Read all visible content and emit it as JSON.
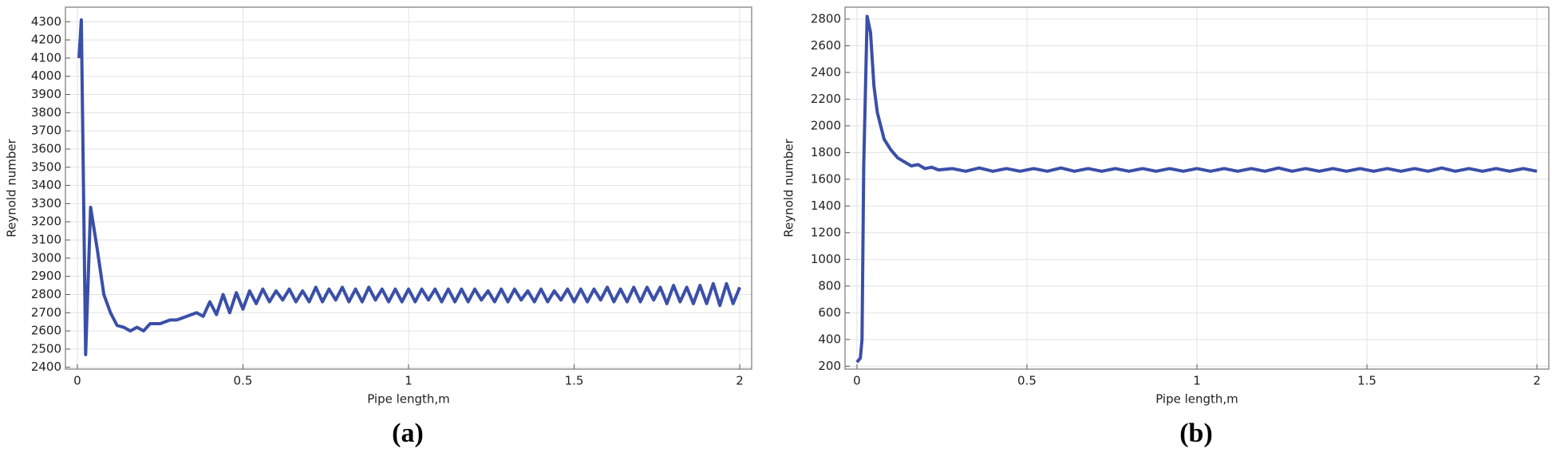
{
  "chart_data": [
    {
      "type": "line",
      "label": "(a)",
      "xlabel": "Pipe length,m",
      "ylabel": "Reynold number",
      "color": "#3a4fa8",
      "grid": true,
      "xlim": [
        -0.036,
        2.036
      ],
      "ylim": [
        2390,
        4380
      ],
      "xticks": [
        0,
        0.5,
        1,
        1.5,
        2
      ],
      "yticks": [
        2400,
        2500,
        2600,
        2700,
        2800,
        2900,
        3000,
        3100,
        3200,
        3300,
        3400,
        3500,
        3600,
        3700,
        3800,
        3900,
        4000,
        4100,
        4200,
        4300
      ],
      "x": [
        0.005,
        0.012,
        0.025,
        0.04,
        0.06,
        0.08,
        0.1,
        0.12,
        0.14,
        0.16,
        0.18,
        0.2,
        0.22,
        0.25,
        0.28,
        0.3,
        0.33,
        0.36,
        0.38,
        0.4,
        0.42,
        0.44,
        0.46,
        0.48,
        0.5,
        0.52,
        0.54,
        0.56,
        0.58,
        0.6,
        0.62,
        0.64,
        0.66,
        0.68,
        0.7,
        0.72,
        0.74,
        0.76,
        0.78,
        0.8,
        0.82,
        0.84,
        0.86,
        0.88,
        0.9,
        0.92,
        0.94,
        0.96,
        0.98,
        1,
        1.02,
        1.04,
        1.06,
        1.08,
        1.1,
        1.12,
        1.14,
        1.16,
        1.18,
        1.2,
        1.22,
        1.24,
        1.26,
        1.28,
        1.3,
        1.32,
        1.34,
        1.36,
        1.38,
        1.4,
        1.42,
        1.44,
        1.46,
        1.48,
        1.5,
        1.52,
        1.54,
        1.56,
        1.58,
        1.6,
        1.62,
        1.64,
        1.66,
        1.68,
        1.7,
        1.72,
        1.74,
        1.76,
        1.78,
        1.8,
        1.82,
        1.84,
        1.86,
        1.88,
        1.9,
        1.92,
        1.94,
        1.96,
        1.98,
        2
      ],
      "values": [
        4100,
        4310,
        2470,
        3280,
        3050,
        2800,
        2700,
        2630,
        2620,
        2600,
        2620,
        2600,
        2640,
        2640,
        2660,
        2660,
        2680,
        2700,
        2680,
        2760,
        2690,
        2800,
        2700,
        2810,
        2720,
        2820,
        2750,
        2830,
        2760,
        2820,
        2770,
        2830,
        2760,
        2820,
        2760,
        2840,
        2760,
        2830,
        2770,
        2840,
        2760,
        2830,
        2760,
        2840,
        2770,
        2830,
        2760,
        2830,
        2760,
        2830,
        2760,
        2830,
        2770,
        2830,
        2760,
        2830,
        2760,
        2830,
        2760,
        2830,
        2770,
        2820,
        2760,
        2830,
        2760,
        2830,
        2770,
        2820,
        2760,
        2830,
        2760,
        2820,
        2770,
        2830,
        2760,
        2830,
        2760,
        2830,
        2770,
        2840,
        2760,
        2830,
        2760,
        2840,
        2760,
        2840,
        2770,
        2840,
        2750,
        2850,
        2760,
        2840,
        2750,
        2850,
        2750,
        2860,
        2740,
        2860,
        2750,
        2840
      ]
    },
    {
      "type": "line",
      "label": "(b)",
      "xlabel": "Pipe length,m",
      "ylabel": "Reynold number",
      "color": "#3a4fa8",
      "grid": true,
      "xlim": [
        -0.035,
        2.035
      ],
      "ylim": [
        178,
        2889
      ],
      "xticks": [
        0,
        0.5,
        1,
        1.5,
        2
      ],
      "yticks": [
        200,
        400,
        600,
        800,
        1000,
        1200,
        1400,
        1600,
        1800,
        2000,
        2200,
        2400,
        2600,
        2800
      ],
      "x": [
        0,
        0.01,
        0.015,
        0.02,
        0.03,
        0.04,
        0.05,
        0.06,
        0.07,
        0.08,
        0.1,
        0.12,
        0.14,
        0.16,
        0.18,
        0.2,
        0.22,
        0.24,
        0.28,
        0.32,
        0.36,
        0.4,
        0.44,
        0.48,
        0.52,
        0.56,
        0.6,
        0.64,
        0.68,
        0.72,
        0.76,
        0.8,
        0.84,
        0.88,
        0.92,
        0.96,
        1,
        1.04,
        1.08,
        1.12,
        1.16,
        1.2,
        1.24,
        1.28,
        1.32,
        1.36,
        1.4,
        1.44,
        1.48,
        1.52,
        1.56,
        1.6,
        1.64,
        1.68,
        1.72,
        1.76,
        1.8,
        1.84,
        1.88,
        1.92,
        1.96,
        2
      ],
      "values": [
        230,
        260,
        400,
        1700,
        2820,
        2700,
        2300,
        2100,
        2000,
        1900,
        1820,
        1760,
        1730,
        1700,
        1710,
        1680,
        1690,
        1670,
        1680,
        1660,
        1685,
        1660,
        1680,
        1660,
        1680,
        1660,
        1685,
        1660,
        1680,
        1660,
        1680,
        1660,
        1680,
        1660,
        1680,
        1660,
        1680,
        1660,
        1680,
        1660,
        1680,
        1660,
        1685,
        1660,
        1680,
        1660,
        1680,
        1660,
        1680,
        1660,
        1680,
        1660,
        1680,
        1660,
        1685,
        1660,
        1680,
        1660,
        1680,
        1660,
        1680,
        1660
      ]
    }
  ]
}
